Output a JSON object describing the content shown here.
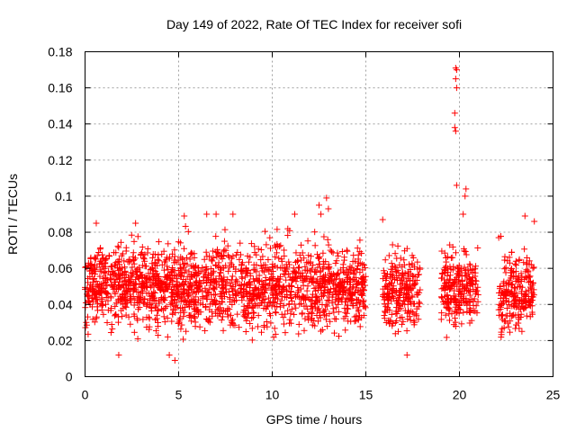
{
  "chart_data": {
    "type": "scatter",
    "title": "Day 149 of 2022, Rate Of TEC Index for receiver sofi",
    "xlabel": "GPS time / hours",
    "ylabel": "ROTI / TECUs",
    "xlim": [
      0,
      25
    ],
    "ylim": [
      0,
      0.18
    ],
    "xticks": [
      0,
      5,
      10,
      15,
      20,
      25
    ],
    "xtick_labels": [
      "0",
      "5",
      "10",
      "15",
      "20",
      "25"
    ],
    "yticks": [
      0,
      0.02,
      0.04,
      0.06,
      0.08,
      0.1,
      0.12,
      0.14,
      0.16,
      0.18
    ],
    "ytick_labels": [
      "0",
      "0.02",
      "0.04",
      "0.06",
      "0.08",
      "0.1",
      "0.12",
      "0.14",
      "0.16",
      "0.18"
    ],
    "grid": true,
    "marker": "+",
    "color": "#ff0000",
    "series": [
      {
        "name": "ROTI",
        "segments": [
          {
            "x_range": [
              0.0,
              15.0
            ],
            "y_band": [
              0.015,
              0.085
            ]
          },
          {
            "x_range": [
              15.9,
              17.9
            ],
            "y_band": [
              0.015,
              0.08
            ]
          },
          {
            "x_range": [
              19.0,
              21.0
            ],
            "y_band": [
              0.018,
              0.08
            ]
          },
          {
            "x_range": [
              22.1,
              24.0
            ],
            "y_band": [
              0.015,
              0.08
            ]
          }
        ],
        "notable_points": [
          {
            "x": 19.8,
            "y": 0.171
          },
          {
            "x": 19.85,
            "y": 0.17
          },
          {
            "x": 19.8,
            "y": 0.165
          },
          {
            "x": 19.85,
            "y": 0.16
          },
          {
            "x": 19.75,
            "y": 0.146
          },
          {
            "x": 19.75,
            "y": 0.138
          },
          {
            "x": 19.8,
            "y": 0.136
          },
          {
            "x": 19.85,
            "y": 0.106
          },
          {
            "x": 20.35,
            "y": 0.104
          },
          {
            "x": 20.3,
            "y": 0.1
          },
          {
            "x": 20.2,
            "y": 0.09
          },
          {
            "x": 12.5,
            "y": 0.095
          },
          {
            "x": 12.9,
            "y": 0.099
          },
          {
            "x": 13.0,
            "y": 0.093
          },
          {
            "x": 12.6,
            "y": 0.09
          },
          {
            "x": 11.2,
            "y": 0.09
          },
          {
            "x": 6.5,
            "y": 0.09
          },
          {
            "x": 7.0,
            "y": 0.09
          },
          {
            "x": 7.9,
            "y": 0.09
          },
          {
            "x": 5.3,
            "y": 0.089
          },
          {
            "x": 2.7,
            "y": 0.085
          },
          {
            "x": 0.6,
            "y": 0.085
          },
          {
            "x": 4.5,
            "y": 0.012
          },
          {
            "x": 4.8,
            "y": 0.009
          },
          {
            "x": 1.8,
            "y": 0.012
          },
          {
            "x": 23.5,
            "y": 0.089
          },
          {
            "x": 24.0,
            "y": 0.086
          },
          {
            "x": 22.1,
            "y": 0.077
          },
          {
            "x": 15.9,
            "y": 0.087
          },
          {
            "x": 17.2,
            "y": 0.012
          }
        ]
      }
    ]
  }
}
